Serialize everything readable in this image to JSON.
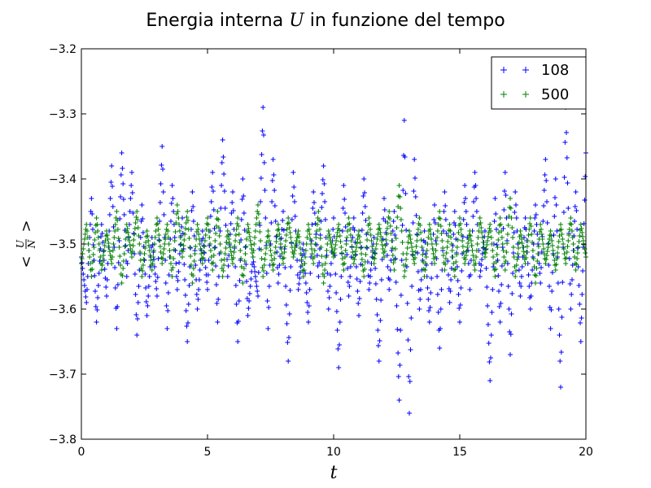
{
  "chart_data": {
    "type": "scatter",
    "marker": "+",
    "title_prefix": "Energia interna ",
    "title_symbol": "U",
    "title_suffix": " in funzione del tempo",
    "xlabel": "t",
    "ylabel": {
      "left_bracket": "<",
      "numerator": "U",
      "denominator": "N",
      "right_bracket": ">"
    },
    "xlim": [
      0,
      20
    ],
    "ylim": [
      -3.8,
      -3.2
    ],
    "x_ticks": [
      0,
      5,
      10,
      15,
      20
    ],
    "y_ticks": [
      -3.8,
      -3.7,
      -3.6,
      -3.5,
      -3.4,
      -3.3,
      -3.2
    ],
    "x_tick_labels": [
      "0",
      "5",
      "10",
      "15",
      "20"
    ],
    "y_tick_labels": [
      "−3.8",
      "−3.7",
      "−3.6",
      "−3.5",
      "−3.4",
      "−3.3",
      "−3.2"
    ],
    "legend_position": "top-right",
    "grid": false,
    "series": [
      {
        "name": "108",
        "color": "#0000ff",
        "x": [
          0.0,
          0.2,
          0.4,
          0.6,
          0.8,
          1.0,
          1.2,
          1.4,
          1.6,
          1.8,
          2.0,
          2.2,
          2.4,
          2.6,
          2.8,
          3.0,
          3.2,
          3.4,
          3.6,
          3.8,
          4.0,
          4.2,
          4.4,
          4.6,
          4.8,
          5.0,
          5.2,
          5.4,
          5.6,
          5.8,
          6.0,
          6.2,
          6.4,
          6.6,
          6.8,
          7.0,
          7.2,
          7.4,
          7.6,
          7.8,
          8.0,
          8.2,
          8.4,
          8.6,
          8.8,
          9.0,
          9.2,
          9.4,
          9.6,
          9.8,
          10.0,
          10.2,
          10.4,
          10.6,
          10.8,
          11.0,
          11.2,
          11.4,
          11.6,
          11.8,
          12.0,
          12.2,
          12.4,
          12.6,
          12.8,
          13.0,
          13.2,
          13.4,
          13.6,
          13.8,
          14.0,
          14.2,
          14.4,
          14.6,
          14.8,
          15.0,
          15.2,
          15.4,
          15.6,
          15.8,
          16.0,
          16.2,
          16.4,
          16.6,
          16.8,
          17.0,
          17.2,
          17.4,
          17.6,
          17.8,
          18.0,
          18.2,
          18.4,
          18.6,
          18.8,
          19.0,
          19.2,
          19.4,
          19.6,
          19.8,
          20.0
        ],
        "y": [
          -3.52,
          -3.59,
          -3.43,
          -3.62,
          -3.47,
          -3.58,
          -3.38,
          -3.63,
          -3.36,
          -3.55,
          -3.39,
          -3.64,
          -3.44,
          -3.61,
          -3.49,
          -3.58,
          -3.35,
          -3.63,
          -3.41,
          -3.57,
          -3.46,
          -3.65,
          -3.42,
          -3.6,
          -3.48,
          -3.57,
          -3.39,
          -3.62,
          -3.34,
          -3.55,
          -3.42,
          -3.65,
          -3.4,
          -3.61,
          -3.52,
          -3.58,
          -3.29,
          -3.63,
          -3.37,
          -3.56,
          -3.45,
          -3.68,
          -3.39,
          -3.57,
          -3.5,
          -3.62,
          -3.42,
          -3.55,
          -3.38,
          -3.6,
          -3.46,
          -3.69,
          -3.41,
          -3.58,
          -3.46,
          -3.61,
          -3.4,
          -3.57,
          -3.49,
          -3.68,
          -3.43,
          -3.57,
          -3.45,
          -3.74,
          -3.31,
          -3.76,
          -3.37,
          -3.6,
          -3.48,
          -3.62,
          -3.44,
          -3.66,
          -3.42,
          -3.59,
          -3.45,
          -3.62,
          -3.41,
          -3.57,
          -3.39,
          -3.55,
          -3.48,
          -3.71,
          -3.43,
          -3.62,
          -3.39,
          -3.67,
          -3.42,
          -3.58,
          -3.46,
          -3.6,
          -3.44,
          -3.56,
          -3.37,
          -3.63,
          -3.4,
          -3.72,
          -3.29,
          -3.6,
          -3.42,
          -3.65,
          -3.36
        ]
      },
      {
        "name": "500",
        "color": "#008000",
        "x": [
          0.0,
          0.2,
          0.4,
          0.6,
          0.8,
          1.0,
          1.2,
          1.4,
          1.6,
          1.8,
          2.0,
          2.2,
          2.4,
          2.6,
          2.8,
          3.0,
          3.2,
          3.4,
          3.6,
          3.8,
          4.0,
          4.2,
          4.4,
          4.6,
          4.8,
          5.0,
          5.2,
          5.4,
          5.6,
          5.8,
          6.0,
          6.2,
          6.4,
          6.6,
          6.8,
          7.0,
          7.2,
          7.4,
          7.6,
          7.8,
          8.0,
          8.2,
          8.4,
          8.6,
          8.8,
          9.0,
          9.2,
          9.4,
          9.6,
          9.8,
          10.0,
          10.2,
          10.4,
          10.6,
          10.8,
          11.0,
          11.2,
          11.4,
          11.6,
          11.8,
          12.0,
          12.2,
          12.4,
          12.6,
          12.8,
          13.0,
          13.2,
          13.4,
          13.6,
          13.8,
          14.0,
          14.2,
          14.4,
          14.6,
          14.8,
          15.0,
          15.2,
          15.4,
          15.6,
          15.8,
          16.0,
          16.2,
          16.4,
          16.6,
          16.8,
          17.0,
          17.2,
          17.4,
          17.6,
          17.8,
          18.0,
          18.2,
          18.4,
          18.6,
          18.8,
          19.0,
          19.2,
          19.4,
          19.6,
          19.8,
          20.0
        ],
        "y": [
          -3.53,
          -3.47,
          -3.55,
          -3.46,
          -3.54,
          -3.48,
          -3.53,
          -3.45,
          -3.56,
          -3.47,
          -3.52,
          -3.45,
          -3.55,
          -3.48,
          -3.54,
          -3.46,
          -3.53,
          -3.47,
          -3.55,
          -3.44,
          -3.52,
          -3.45,
          -3.56,
          -3.47,
          -3.53,
          -3.46,
          -3.54,
          -3.45,
          -3.55,
          -3.48,
          -3.53,
          -3.46,
          -3.56,
          -3.47,
          -3.52,
          -3.44,
          -3.55,
          -3.48,
          -3.54,
          -3.47,
          -3.53,
          -3.46,
          -3.52,
          -3.48,
          -3.55,
          -3.47,
          -3.53,
          -3.45,
          -3.56,
          -3.48,
          -3.52,
          -3.47,
          -3.54,
          -3.46,
          -3.53,
          -3.48,
          -3.55,
          -3.46,
          -3.53,
          -3.47,
          -3.52,
          -3.45,
          -3.54,
          -3.41,
          -3.55,
          -3.48,
          -3.53,
          -3.46,
          -3.55,
          -3.47,
          -3.53,
          -3.45,
          -3.54,
          -3.47,
          -3.55,
          -3.46,
          -3.53,
          -3.48,
          -3.54,
          -3.46,
          -3.52,
          -3.47,
          -3.55,
          -3.46,
          -3.54,
          -3.43,
          -3.55,
          -3.48,
          -3.53,
          -3.46,
          -3.56,
          -3.47,
          -3.53,
          -3.48,
          -3.54,
          -3.47,
          -3.53,
          -3.46,
          -3.54,
          -3.47,
          -3.52
        ]
      }
    ]
  }
}
